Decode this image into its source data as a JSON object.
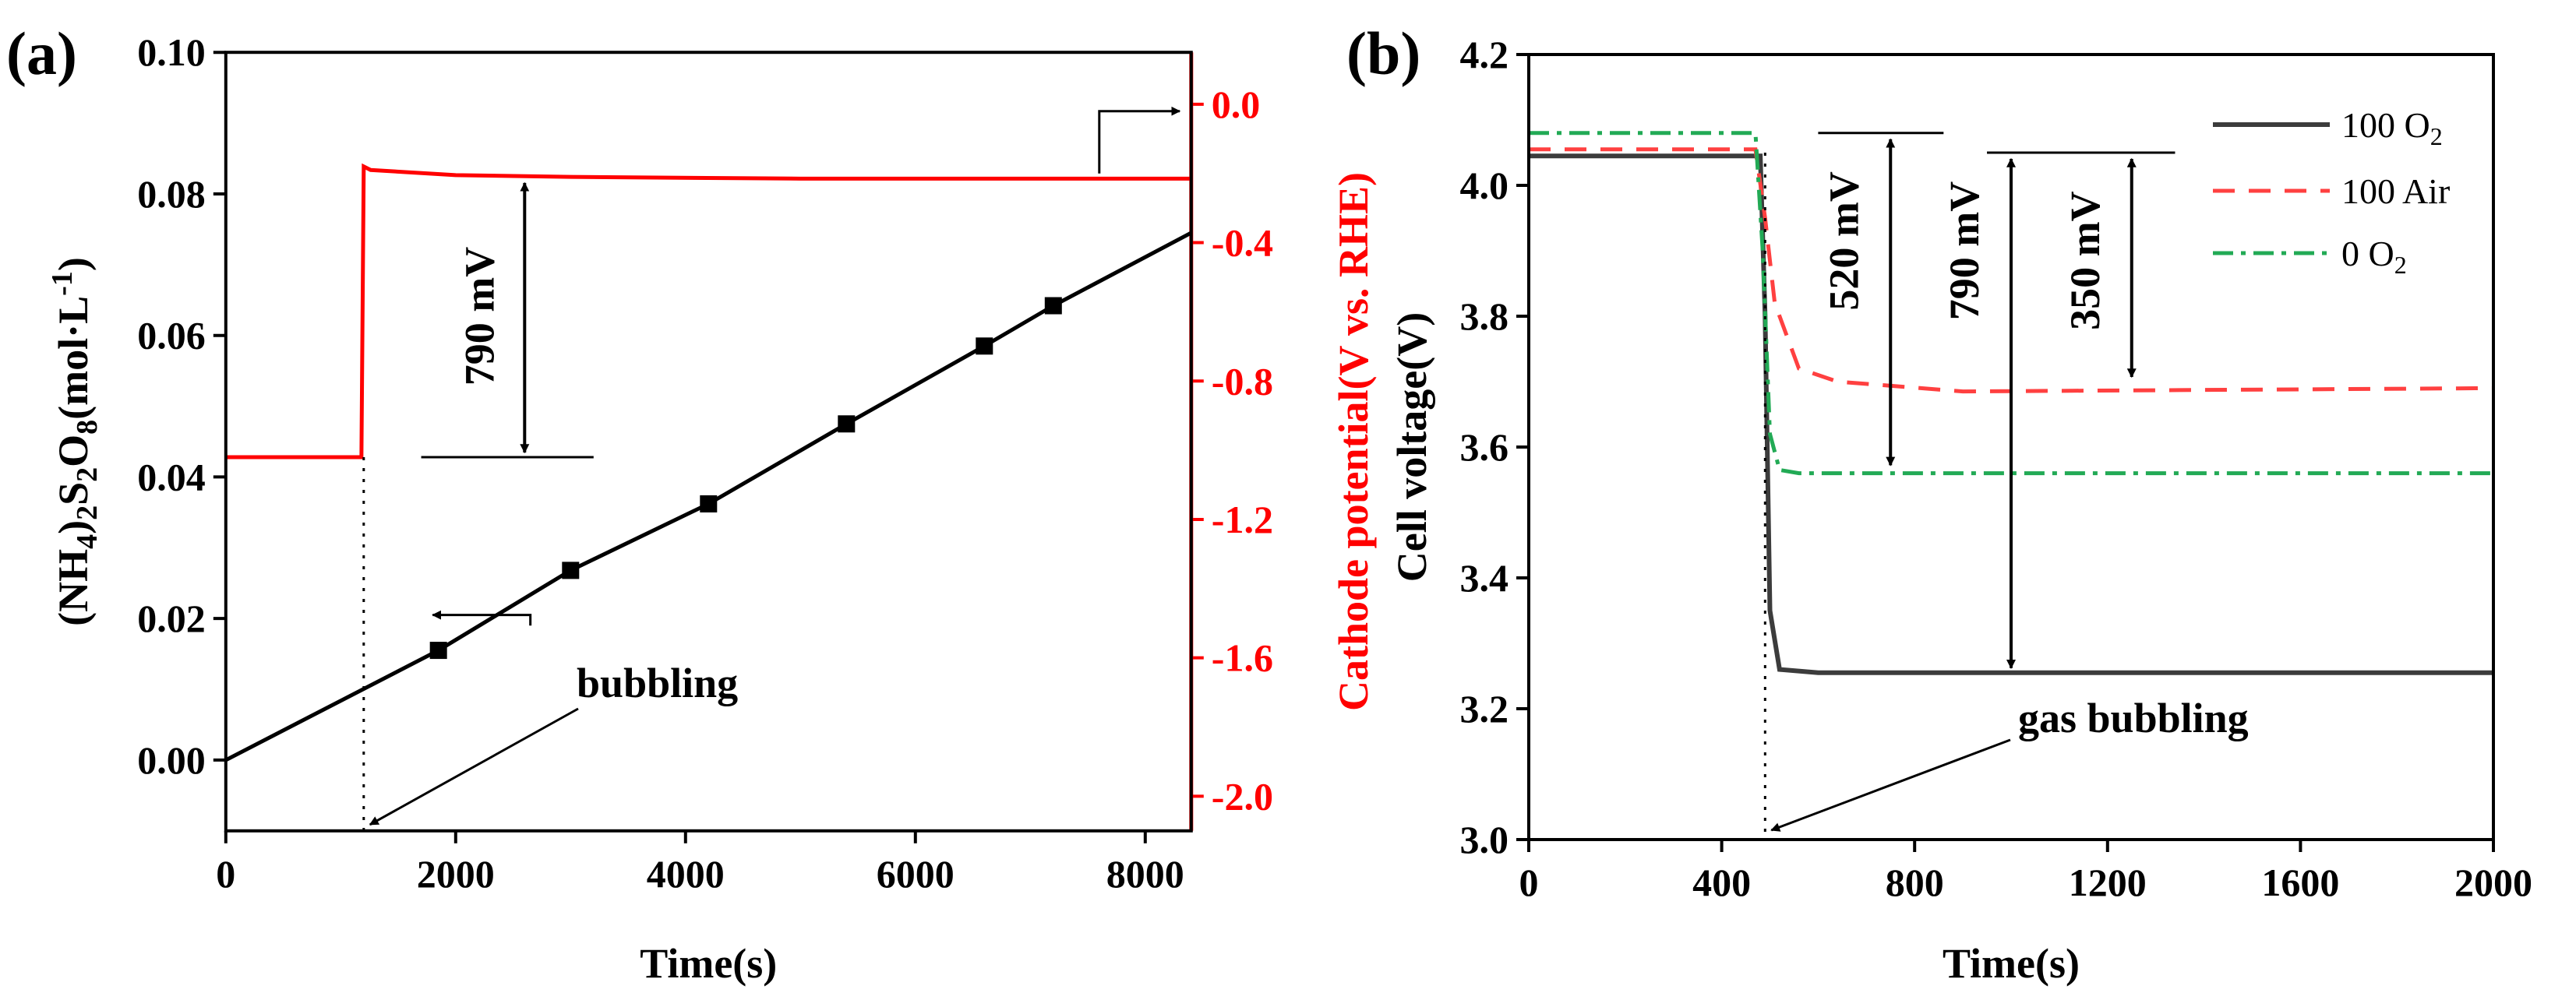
{
  "colors": {
    "axis": "#000000",
    "red": "#ff0000",
    "dark": "#3c3c3c",
    "dash_red": "#ff4040",
    "green": "#22aa55"
  },
  "chart_data": [
    {
      "type": "line",
      "panel_label": "(a)",
      "xlabel": "Time(s)",
      "ylabel_left": {
        "main": "(NH",
        "sub1": "4",
        "mid1": ")",
        "sub2": "2",
        "mid2": "S",
        "sub3": "2",
        "mid3": "O",
        "sub4": "8",
        "tail": "(mol·L",
        "sup": "-1",
        "end": ")"
      },
      "ylabel_right": "Cathode potential(V vs. RHE)",
      "xlim": [
        0,
        8400
      ],
      "ylim_left": [
        -0.01,
        0.1
      ],
      "ylim_right": [
        -2.1,
        0.15
      ],
      "x_ticks": [
        "0",
        "2000",
        "4000",
        "6000",
        "8000"
      ],
      "x_tick_values": [
        0,
        2000,
        4000,
        6000,
        8000
      ],
      "y_left_ticks": [
        "0.00",
        "0.02",
        "0.04",
        "0.06",
        "0.08",
        "0.10"
      ],
      "y_left_tick_values": [
        0,
        0.02,
        0.04,
        0.06,
        0.08,
        0.1
      ],
      "y_right_ticks": [
        "0.0",
        "-0.4",
        "-0.8",
        "-1.2",
        "-1.6",
        "-2.0"
      ],
      "y_right_tick_values": [
        0,
        -0.4,
        -0.8,
        -1.2,
        -1.6,
        -2.0
      ],
      "concentration_series": {
        "name": "(NH4)2S2O8 concentration",
        "x": [
          0,
          1850,
          3000,
          4200,
          5400,
          6600,
          7200,
          8400
        ],
        "y": [
          0,
          0.0155,
          0.0268,
          0.0362,
          0.0475,
          0.0585,
          0.0642,
          0.0745
        ],
        "marker_x": [
          1850,
          3000,
          4200,
          5400,
          6600,
          7200
        ]
      },
      "potential_series": {
        "name": "Cathode potential",
        "x": [
          0,
          1180,
          1200,
          1260,
          2000,
          3000,
          5000,
          8400
        ],
        "y": [
          -1.02,
          -1.02,
          -0.18,
          -0.19,
          -0.205,
          -0.21,
          -0.215,
          -0.215
        ]
      },
      "bubbling_time": 1200,
      "annotations": {
        "drop": "790 mV",
        "bubbling": "bubbling"
      }
    },
    {
      "type": "line",
      "panel_label": "(b)",
      "xlabel": "Time(s)",
      "ylabel": "Cell voltage(V)",
      "xlim": [
        0,
        2000
      ],
      "ylim": [
        3.0,
        4.2
      ],
      "x_ticks": [
        "0",
        "400",
        "800",
        "1200",
        "1600",
        "2000"
      ],
      "x_tick_values": [
        0,
        400,
        800,
        1200,
        1600,
        2000
      ],
      "y_ticks": [
        "3.0",
        "3.2",
        "3.4",
        "3.6",
        "3.8",
        "4.0",
        "4.2"
      ],
      "y_tick_values": [
        3.0,
        3.2,
        3.4,
        3.6,
        3.8,
        4.0,
        4.2
      ],
      "series": [
        {
          "name": "100 O",
          "sub": "2",
          "style": "solid",
          "x": [
            0,
            480,
            490,
            500,
            520,
            600,
            1200,
            2000
          ],
          "y": [
            4.045,
            4.045,
            3.8,
            3.35,
            3.26,
            3.255,
            3.255,
            3.255
          ]
        },
        {
          "name": "100 Air",
          "sub": "",
          "style": "dashed",
          "x": [
            0,
            470,
            490,
            510,
            560,
            640,
            900,
            2000
          ],
          "y": [
            4.055,
            4.055,
            3.95,
            3.82,
            3.72,
            3.7,
            3.685,
            3.69
          ]
        },
        {
          "name": "0 O",
          "sub": "2",
          "style": "dashdot",
          "x": [
            0,
            470,
            485,
            500,
            520,
            560,
            1200,
            2000
          ],
          "y": [
            4.08,
            4.08,
            3.9,
            3.62,
            3.565,
            3.56,
            3.56,
            3.56
          ]
        }
      ],
      "bubbling_time": 490,
      "annotations": {
        "drop_1": "520 mV",
        "drop_2": "790 mV",
        "drop_3": "350 mV",
        "gas_bubbling": "gas bubbling"
      }
    }
  ]
}
